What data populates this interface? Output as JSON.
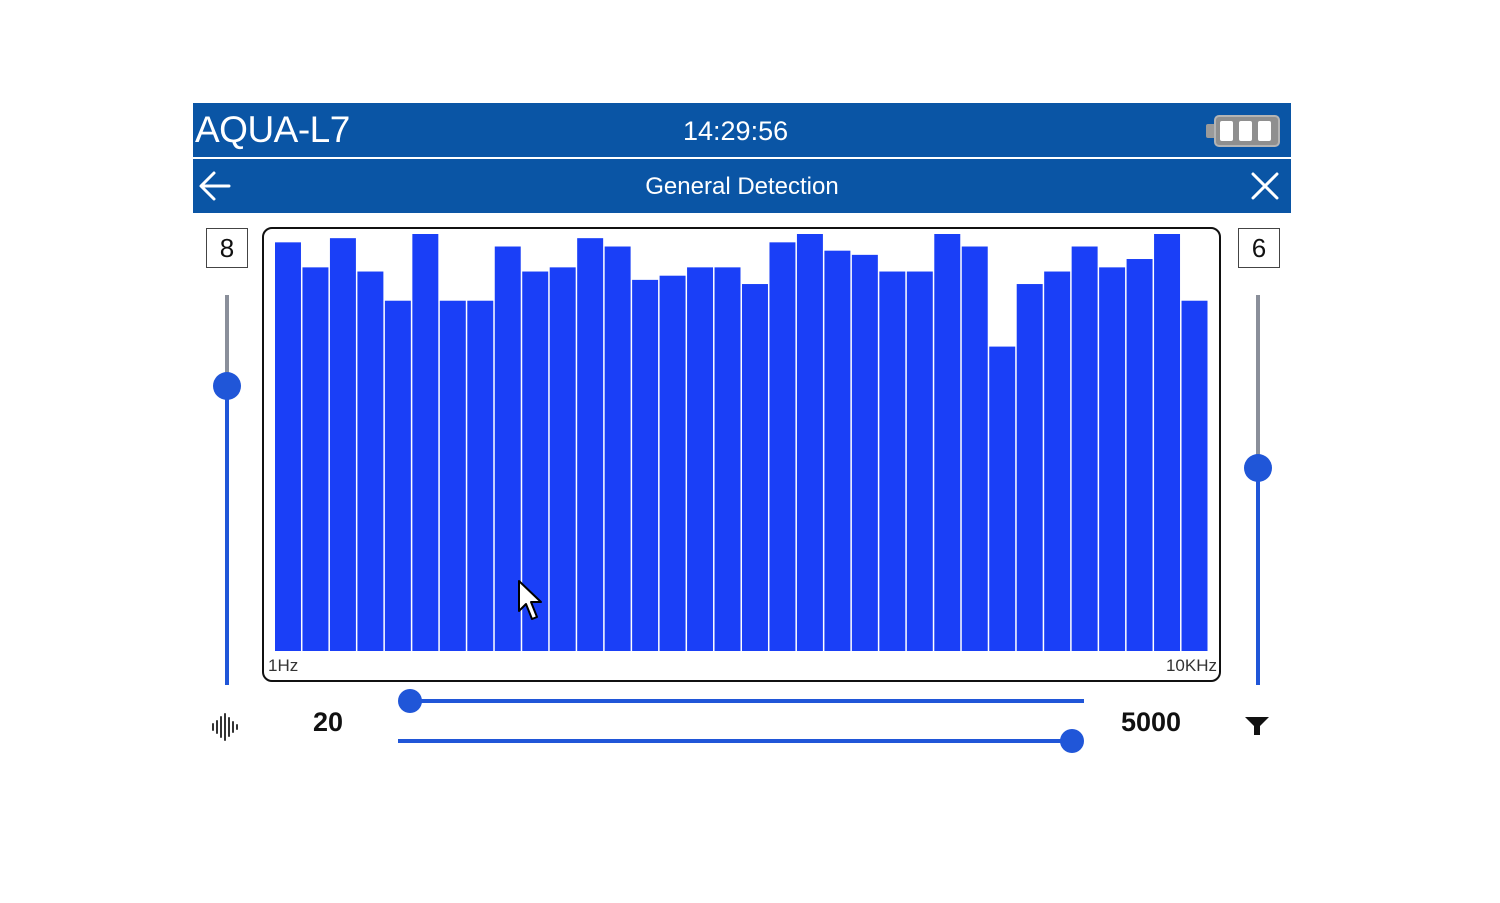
{
  "status_bar": {
    "app_title": "AQUA-L7",
    "clock": "14:29:56",
    "battery_icon": "battery-full-icon",
    "battery_bars": 3
  },
  "nav_bar": {
    "title": "General Detection",
    "back_icon": "arrow-left-icon",
    "close_icon": "close-icon"
  },
  "left_control": {
    "value": "8",
    "slider_level": 0.78
  },
  "right_control": {
    "value": "6",
    "slider_level": 0.56
  },
  "frequency_range": {
    "min_value": "20",
    "max_value": "5000",
    "low_slider_level": 0.0,
    "high_slider_level": 1.0,
    "wave_icon": "sound-wave-icon",
    "filter_icon": "filter-icon"
  },
  "colors": {
    "bar_color": "#1a3ff7",
    "header_bg": "#0a55a5",
    "accent": "#2056d8"
  },
  "chart_data": {
    "type": "bar",
    "x_start_label": "1Hz",
    "x_end_label": "10KHz",
    "ylim": [
      0,
      100
    ],
    "values": [
      98,
      92,
      99,
      91,
      84,
      100,
      84,
      84,
      97,
      91,
      92,
      99,
      97,
      89,
      90,
      92,
      92,
      88,
      98,
      100,
      96,
      95,
      91,
      91,
      100,
      97,
      73,
      88,
      91,
      97,
      92,
      94,
      100,
      84
    ]
  }
}
